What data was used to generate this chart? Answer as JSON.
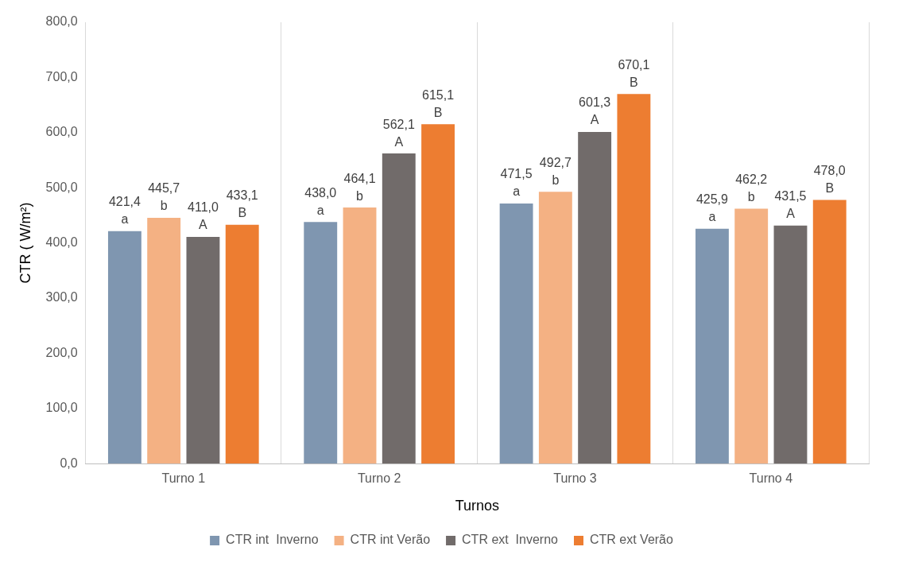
{
  "chart_data": {
    "type": "bar",
    "xlabel": "Turnos",
    "ylabel": "CTR ( W/m²)",
    "categories": [
      "Turno 1",
      "Turno 2",
      "Turno 3",
      "Turno 4"
    ],
    "series": [
      {
        "name": "CTR int  Inverno",
        "color": "#7f96b0",
        "values": [
          421.4,
          438.0,
          471.5,
          425.9
        ],
        "value_labels": [
          "421,4\na",
          "438,0\na",
          "471,5\na",
          "425,9\na"
        ]
      },
      {
        "name": "CTR int Verão",
        "color": "#f4b183",
        "values": [
          445.7,
          464.1,
          492.7,
          462.2
        ],
        "value_labels": [
          "445,7\nb",
          "464,1\nb",
          "492,7\nb",
          "462,2\nb"
        ]
      },
      {
        "name": "CTR ext  Inverno",
        "color": "#716b6a",
        "values": [
          411.0,
          562.1,
          601.3,
          431.5
        ],
        "value_labels": [
          "411,0\nA",
          "562,1\nA",
          "601,3\nA",
          "431,5\nA"
        ]
      },
      {
        "name": "CTR ext Verão",
        "color": "#ed7d31",
        "values": [
          433.1,
          615.1,
          670.1,
          478.0
        ],
        "value_labels": [
          "433,1\nB",
          "615,1\nB",
          "670,1\nB",
          "478,0\nB"
        ]
      }
    ],
    "ylim": [
      0,
      800
    ],
    "yticks": [
      {
        "value": 0,
        "label": "0,0"
      },
      {
        "value": 100,
        "label": "100,0"
      },
      {
        "value": 200,
        "label": "200,0"
      },
      {
        "value": 300,
        "label": "300,0"
      },
      {
        "value": 400,
        "label": "400,0"
      },
      {
        "value": 500,
        "label": "500,0"
      },
      {
        "value": 600,
        "label": "600,0"
      },
      {
        "value": 700,
        "label": "700,0"
      },
      {
        "value": 800,
        "label": "800,0"
      }
    ],
    "grid": "x",
    "legend": "bottom"
  }
}
